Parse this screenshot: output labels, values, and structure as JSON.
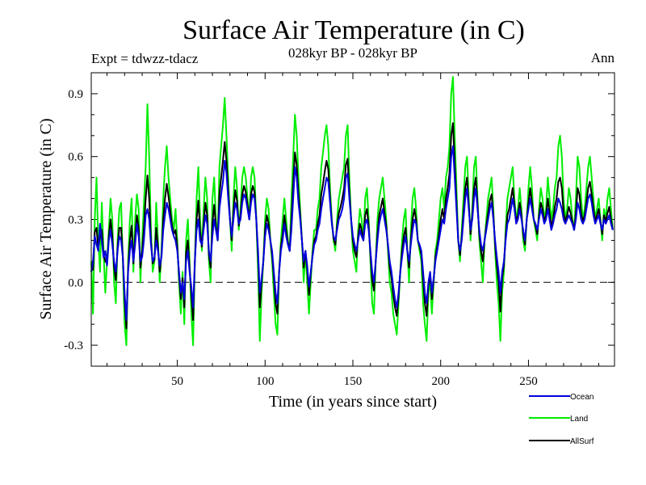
{
  "chart_data": {
    "type": "line",
    "title": "Surface Air Temperature (in C)",
    "subtitle": "028kyr BP - 028kyr BP",
    "left_label": "Expt = tdwzz-tdacz",
    "right_label": "Ann",
    "xlabel": "Time (in years since start)",
    "ylabel": "Surface Air Temperature (in C)",
    "xlim": [
      1,
      299
    ],
    "ylim": [
      -0.4,
      1.0
    ],
    "xticks": [
      50,
      100,
      150,
      200,
      250
    ],
    "yticks": [
      -0.3,
      0.0,
      0.3,
      0.6,
      0.9
    ],
    "ytick_labels": [
      "-0.3",
      "0.0",
      "0.3",
      "0.6",
      "0.9"
    ],
    "zero_line": true,
    "legend": [
      "Ocean",
      "Land",
      "AllSurf"
    ],
    "series": [
      {
        "name": "Ocean",
        "color": "#0000dd",
        "values": [
          0.05,
          0.1,
          0.22,
          0.18,
          0.15,
          0.28,
          0.2,
          0.12,
          0.15,
          0.08,
          0.2,
          0.25,
          0.18,
          0.1,
          0.05,
          0.15,
          0.22,
          0.2,
          0.12,
          -0.05,
          -0.18,
          0.05,
          0.15,
          0.2,
          0.1,
          0.18,
          0.28,
          0.22,
          0.1,
          0.12,
          0.2,
          0.32,
          0.35,
          0.3,
          0.18,
          0.1,
          0.12,
          0.2,
          0.15,
          0.08,
          0.12,
          0.25,
          0.32,
          0.38,
          0.35,
          0.3,
          0.25,
          0.22,
          0.2,
          0.15,
          0.05,
          -0.05,
          0.0,
          -0.08,
          0.1,
          0.15,
          0.05,
          -0.02,
          -0.12,
          0.1,
          0.25,
          0.3,
          0.2,
          0.18,
          0.25,
          0.32,
          0.28,
          0.15,
          0.1,
          0.22,
          0.3,
          0.25,
          0.2,
          0.35,
          0.42,
          0.48,
          0.58,
          0.52,
          0.4,
          0.3,
          0.22,
          0.3,
          0.38,
          0.35,
          0.28,
          0.3,
          0.38,
          0.42,
          0.4,
          0.35,
          0.3,
          0.38,
          0.42,
          0.4,
          0.3,
          0.15,
          -0.05,
          0.02,
          0.1,
          0.22,
          0.28,
          0.25,
          0.2,
          0.15,
          0.05,
          -0.05,
          -0.1,
          0.05,
          0.15,
          0.2,
          0.28,
          0.22,
          0.18,
          0.15,
          0.25,
          0.4,
          0.55,
          0.5,
          0.38,
          0.3,
          0.2,
          0.1,
          0.15,
          0.08,
          -0.02,
          0.05,
          0.12,
          0.18,
          0.2,
          0.25,
          0.28,
          0.35,
          0.4,
          0.45,
          0.5,
          0.48,
          0.38,
          0.28,
          0.22,
          0.2,
          0.25,
          0.3,
          0.32,
          0.35,
          0.4,
          0.5,
          0.52,
          0.4,
          0.3,
          0.22,
          0.18,
          0.15,
          0.2,
          0.25,
          0.22,
          0.2,
          0.28,
          0.3,
          0.25,
          0.15,
          0.05,
          0.0,
          0.1,
          0.2,
          0.28,
          0.32,
          0.35,
          0.3,
          0.25,
          0.18,
          0.1,
          0.05,
          -0.02,
          -0.08,
          -0.12,
          -0.05,
          0.05,
          0.12,
          0.18,
          0.22,
          0.15,
          0.1,
          0.18,
          0.25,
          0.3,
          0.28,
          0.2,
          0.18,
          0.15,
          0.05,
          -0.05,
          -0.1,
          0.0,
          0.05,
          -0.05,
          0.02,
          0.1,
          0.15,
          0.2,
          0.25,
          0.3,
          0.28,
          0.35,
          0.4,
          0.45,
          0.6,
          0.65,
          0.5,
          0.35,
          0.2,
          0.15,
          0.2,
          0.3,
          0.4,
          0.45,
          0.35,
          0.25,
          0.3,
          0.4,
          0.45,
          0.35,
          0.25,
          0.18,
          0.15,
          0.2,
          0.25,
          0.3,
          0.35,
          0.38,
          0.3,
          0.2,
          0.12,
          0.05,
          -0.05,
          0.05,
          0.1,
          0.2,
          0.28,
          0.3,
          0.35,
          0.4,
          0.35,
          0.28,
          0.3,
          0.35,
          0.3,
          0.25,
          0.2,
          0.3,
          0.35,
          0.4,
          0.35,
          0.3,
          0.28,
          0.25,
          0.3,
          0.35,
          0.32,
          0.28,
          0.3,
          0.35,
          0.3,
          0.25,
          0.28,
          0.32,
          0.35,
          0.4,
          0.38,
          0.35,
          0.3,
          0.28,
          0.3,
          0.32,
          0.3,
          0.28,
          0.25,
          0.3,
          0.38,
          0.35,
          0.3,
          0.28,
          0.3,
          0.35,
          0.4,
          0.42,
          0.38,
          0.32,
          0.28,
          0.3,
          0.32,
          0.28,
          0.25,
          0.3,
          0.28,
          0.3,
          0.32,
          0.28,
          0.25
        ]
      },
      {
        "name": "Land",
        "color": "#00ee00",
        "values": [
          0.1,
          -0.15,
          0.3,
          0.5,
          0.2,
          0.05,
          0.38,
          0.15,
          -0.05,
          0.1,
          0.25,
          0.4,
          0.3,
          0.0,
          -0.1,
          0.2,
          0.35,
          0.38,
          0.1,
          -0.2,
          -0.3,
          0.1,
          0.3,
          0.4,
          0.05,
          0.3,
          0.42,
          0.35,
          0.0,
          0.2,
          0.38,
          0.55,
          0.85,
          0.6,
          0.25,
          0.05,
          0.1,
          0.38,
          0.2,
          0.0,
          0.15,
          0.4,
          0.55,
          0.65,
          0.5,
          0.4,
          0.3,
          0.25,
          0.35,
          0.2,
          0.0,
          -0.15,
          0.05,
          -0.2,
          0.2,
          0.3,
          0.1,
          -0.15,
          -0.3,
          0.1,
          0.4,
          0.55,
          0.3,
          0.15,
          0.35,
          0.5,
          0.4,
          0.1,
          0.0,
          0.4,
          0.5,
          0.3,
          0.2,
          0.55,
          0.65,
          0.75,
          0.88,
          0.7,
          0.5,
          0.3,
          0.15,
          0.4,
          0.55,
          0.45,
          0.25,
          0.35,
          0.5,
          0.55,
          0.5,
          0.4,
          0.3,
          0.5,
          0.55,
          0.5,
          0.3,
          0.05,
          -0.28,
          -0.05,
          0.1,
          0.3,
          0.4,
          0.35,
          0.2,
          0.1,
          -0.05,
          -0.2,
          -0.25,
          0.05,
          0.2,
          0.3,
          0.4,
          0.3,
          0.2,
          0.15,
          0.4,
          0.6,
          0.8,
          0.7,
          0.5,
          0.35,
          0.2,
          0.0,
          0.15,
          0.0,
          -0.15,
          0.0,
          0.15,
          0.25,
          0.25,
          0.35,
          0.4,
          0.55,
          0.62,
          0.7,
          0.75,
          0.65,
          0.45,
          0.3,
          0.2,
          0.15,
          0.3,
          0.4,
          0.45,
          0.5,
          0.55,
          0.7,
          0.75,
          0.5,
          0.3,
          0.15,
          0.1,
          0.05,
          0.25,
          0.35,
          0.3,
          0.2,
          0.4,
          0.45,
          0.3,
          0.1,
          -0.1,
          -0.15,
          0.1,
          0.3,
          0.4,
          0.45,
          0.5,
          0.4,
          0.3,
          0.15,
          0.0,
          -0.05,
          -0.15,
          -0.2,
          -0.25,
          -0.1,
          0.05,
          0.2,
          0.3,
          0.35,
          0.15,
          0.0,
          0.25,
          0.4,
          0.45,
          0.35,
          0.2,
          0.15,
          0.1,
          -0.1,
          -0.2,
          -0.28,
          -0.05,
          0.0,
          -0.15,
          0.0,
          0.15,
          0.2,
          0.3,
          0.4,
          0.45,
          0.35,
          0.5,
          0.55,
          0.65,
          0.9,
          0.98,
          0.7,
          0.45,
          0.2,
          0.1,
          0.25,
          0.4,
          0.55,
          0.6,
          0.4,
          0.2,
          0.35,
          0.55,
          0.6,
          0.4,
          0.2,
          0.1,
          0.0,
          0.2,
          0.3,
          0.4,
          0.45,
          0.5,
          0.35,
          0.15,
          0.0,
          -0.1,
          -0.28,
          -0.05,
          0.05,
          0.25,
          0.4,
          0.45,
          0.5,
          0.55,
          0.4,
          0.3,
          0.35,
          0.45,
          0.35,
          0.2,
          0.15,
          0.3,
          0.45,
          0.55,
          0.45,
          0.3,
          0.25,
          0.2,
          0.35,
          0.45,
          0.4,
          0.3,
          0.35,
          0.5,
          0.4,
          0.3,
          0.35,
          0.45,
          0.5,
          0.65,
          0.7,
          0.6,
          0.4,
          0.3,
          0.35,
          0.45,
          0.4,
          0.3,
          0.25,
          0.4,
          0.6,
          0.55,
          0.4,
          0.3,
          0.35,
          0.45,
          0.55,
          0.6,
          0.5,
          0.4,
          0.3,
          0.35,
          0.4,
          0.3,
          0.2,
          0.35,
          0.3,
          0.4,
          0.45,
          0.35,
          0.25
        ]
      },
      {
        "name": "AllSurf",
        "color": "#000000",
        "values": [
          0.06,
          0.06,
          0.24,
          0.26,
          0.16,
          0.22,
          0.25,
          0.13,
          0.1,
          0.09,
          0.22,
          0.3,
          0.22,
          0.07,
          0.01,
          0.17,
          0.26,
          0.26,
          0.12,
          -0.09,
          -0.22,
          0.07,
          0.2,
          0.27,
          0.09,
          0.22,
          0.32,
          0.26,
          0.07,
          0.15,
          0.26,
          0.4,
          0.51,
          0.4,
          0.2,
          0.09,
          0.11,
          0.26,
          0.17,
          0.05,
          0.13,
          0.3,
          0.4,
          0.47,
          0.41,
          0.34,
          0.27,
          0.23,
          0.25,
          0.17,
          0.03,
          -0.08,
          0.02,
          -0.12,
          0.14,
          0.2,
          0.07,
          -0.06,
          -0.18,
          0.1,
          0.3,
          0.39,
          0.24,
          0.17,
          0.28,
          0.38,
          0.32,
          0.13,
          0.07,
          0.28,
          0.37,
          0.27,
          0.2,
          0.42,
          0.5,
          0.58,
          0.67,
          0.58,
          0.44,
          0.3,
          0.2,
          0.34,
          0.44,
          0.39,
          0.27,
          0.32,
          0.42,
          0.46,
          0.43,
          0.37,
          0.3,
          0.42,
          0.46,
          0.43,
          0.3,
          0.12,
          -0.12,
          0.0,
          0.1,
          0.25,
          0.32,
          0.28,
          0.2,
          0.13,
          0.02,
          -0.1,
          -0.15,
          0.05,
          0.17,
          0.23,
          0.32,
          0.25,
          0.19,
          0.15,
          0.3,
          0.47,
          0.62,
          0.56,
          0.42,
          0.32,
          0.2,
          0.07,
          0.15,
          0.06,
          -0.06,
          0.04,
          0.13,
          0.2,
          0.22,
          0.28,
          0.32,
          0.42,
          0.47,
          0.53,
          0.58,
          0.54,
          0.4,
          0.29,
          0.21,
          0.18,
          0.27,
          0.33,
          0.36,
          0.4,
          0.45,
          0.56,
          0.59,
          0.43,
          0.3,
          0.2,
          0.15,
          0.12,
          0.22,
          0.28,
          0.25,
          0.2,
          0.32,
          0.35,
          0.27,
          0.13,
          0.01,
          -0.04,
          0.1,
          0.23,
          0.32,
          0.36,
          0.4,
          0.33,
          0.27,
          0.17,
          0.07,
          0.02,
          -0.06,
          -0.12,
          -0.16,
          -0.07,
          0.05,
          0.15,
          0.22,
          0.26,
          0.15,
          0.07,
          0.2,
          0.3,
          0.35,
          0.3,
          0.2,
          0.17,
          0.13,
          0.01,
          -0.1,
          -0.16,
          -0.02,
          0.04,
          -0.08,
          0.01,
          0.12,
          0.17,
          0.23,
          0.3,
          0.35,
          0.3,
          0.4,
          0.45,
          0.52,
          0.7,
          0.76,
          0.57,
          0.38,
          0.2,
          0.13,
          0.22,
          0.33,
          0.45,
          0.5,
          0.37,
          0.23,
          0.32,
          0.45,
          0.5,
          0.37,
          0.23,
          0.15,
          0.1,
          0.2,
          0.27,
          0.33,
          0.39,
          0.42,
          0.32,
          0.18,
          0.08,
          0.0,
          -0.14,
          0.02,
          0.08,
          0.22,
          0.32,
          0.35,
          0.4,
          0.45,
          0.37,
          0.29,
          0.32,
          0.38,
          0.32,
          0.23,
          0.18,
          0.3,
          0.38,
          0.45,
          0.38,
          0.3,
          0.27,
          0.23,
          0.32,
          0.38,
          0.35,
          0.29,
          0.32,
          0.4,
          0.33,
          0.27,
          0.3,
          0.36,
          0.4,
          0.48,
          0.5,
          0.45,
          0.33,
          0.29,
          0.32,
          0.36,
          0.33,
          0.29,
          0.25,
          0.33,
          0.45,
          0.42,
          0.33,
          0.29,
          0.32,
          0.38,
          0.45,
          0.48,
          0.42,
          0.35,
          0.29,
          0.32,
          0.35,
          0.29,
          0.23,
          0.32,
          0.29,
          0.33,
          0.36,
          0.3,
          0.25
        ]
      }
    ]
  }
}
